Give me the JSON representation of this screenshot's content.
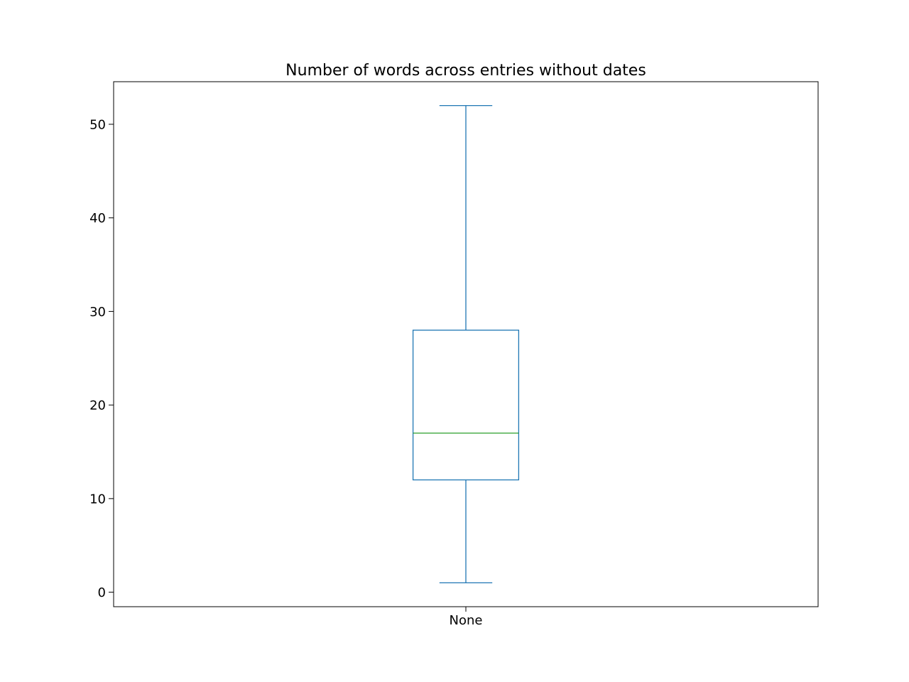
{
  "chart_data": {
    "type": "box",
    "title": "Number of words across entries without dates",
    "xlabel": "",
    "ylabel": "",
    "categories": [
      "None"
    ],
    "boxes": [
      {
        "category": "None",
        "whisker_low": 1,
        "q1": 12,
        "median": 17,
        "q3": 28,
        "whisker_high": 52
      }
    ],
    "y_ticks": [
      0,
      10,
      20,
      30,
      40,
      50
    ],
    "ylim": [
      -1.55,
      54.55
    ],
    "grid": false,
    "legend": "none",
    "colors": {
      "box": "#1f77b4",
      "median": "#2ca02c",
      "axes": "#000000"
    }
  }
}
